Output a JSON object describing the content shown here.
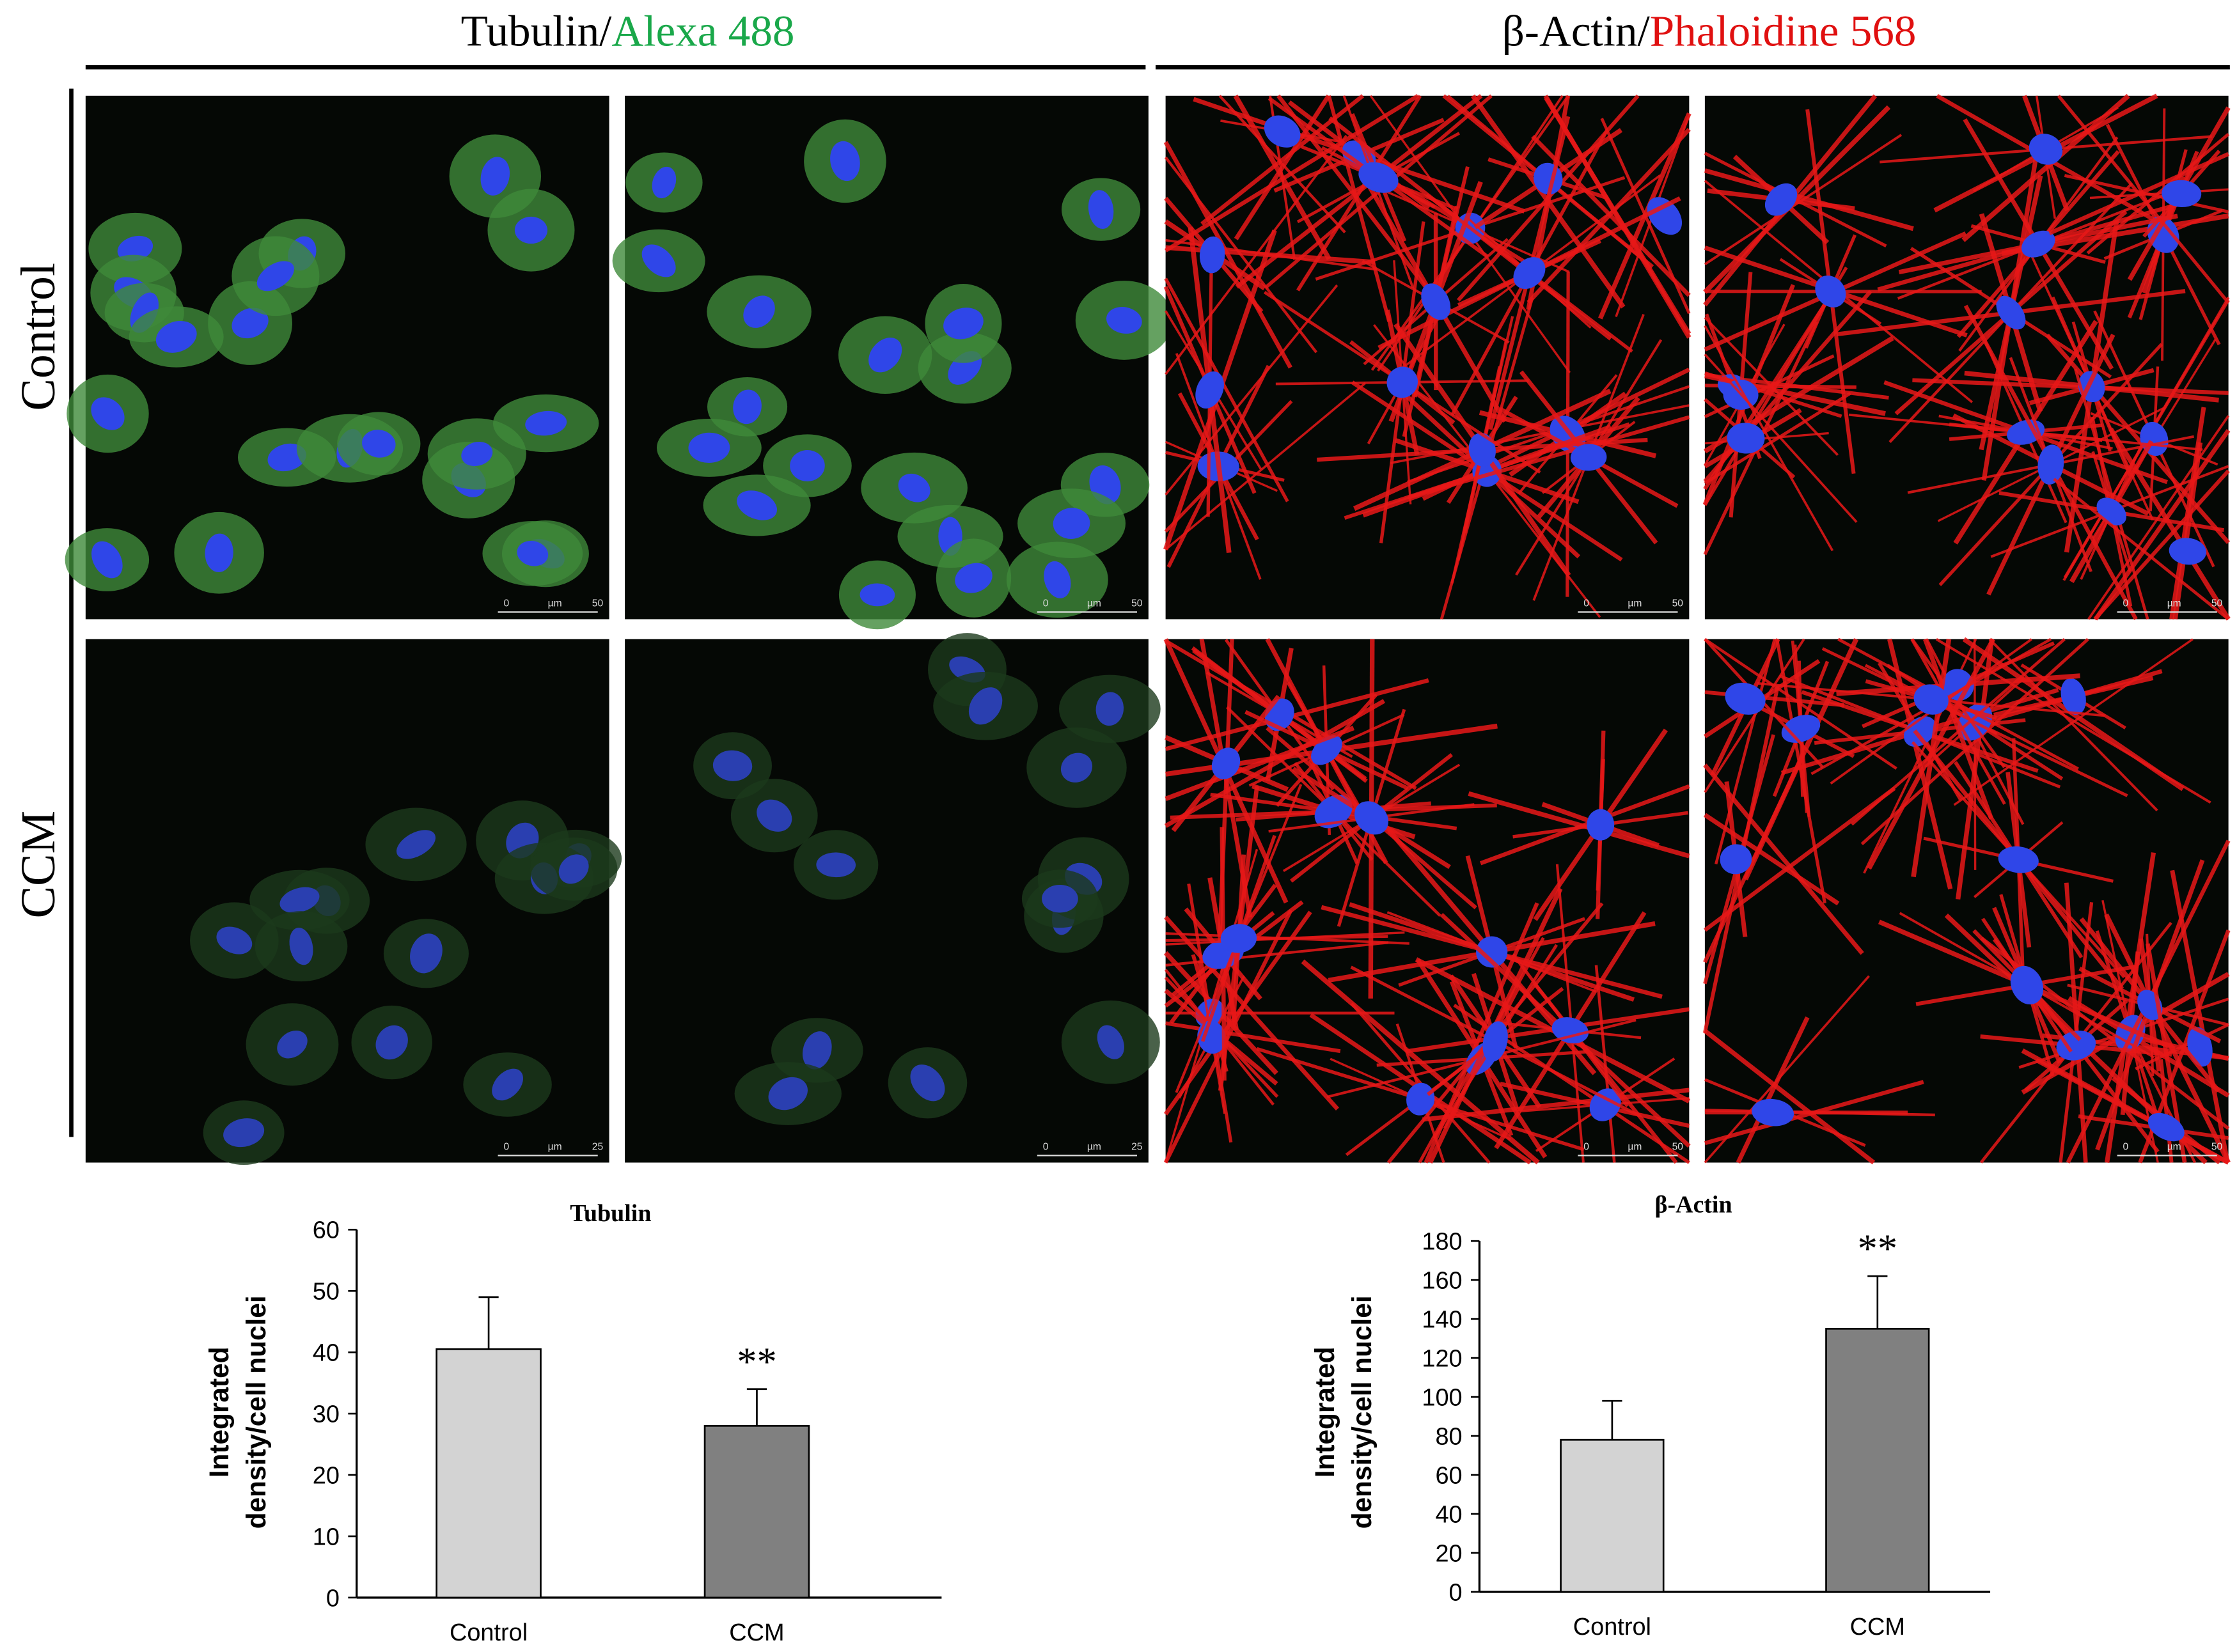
{
  "header": {
    "left": {
      "prefix": "Tubulin/",
      "stain": "Alexa 488"
    },
    "right": {
      "prefix": "β-Actin/",
      "stain": "Phaloidine 568"
    }
  },
  "rows": [
    "Control",
    "CCM"
  ],
  "panels": [
    [
      {
        "scale": [
          "0",
          "µm",
          "50"
        ]
      },
      {
        "scale": [
          "0",
          "µm",
          "50"
        ]
      },
      {
        "scale": [
          "0",
          "µm",
          "50"
        ]
      },
      {
        "scale": [
          "0",
          "µm",
          "50"
        ]
      }
    ],
    [
      {
        "scale": [
          "0",
          "µm",
          "25"
        ]
      },
      {
        "scale": [
          "0",
          "µm",
          "25"
        ]
      },
      {
        "scale": [
          "0",
          "µm",
          "50"
        ]
      },
      {
        "scale": [
          "0",
          "µm",
          "50"
        ]
      }
    ]
  ],
  "chart_data": [
    {
      "type": "bar",
      "title": "Tubulin",
      "ylabel": [
        "Integrated",
        "density/cell nuclei"
      ],
      "categories": [
        "Control",
        "CCM"
      ],
      "values": [
        40.5,
        28
      ],
      "errors": [
        8.5,
        6
      ],
      "colors": [
        "#d3d3d3",
        "#808080"
      ],
      "ylim": [
        0,
        60
      ],
      "yticks": [
        0,
        10,
        20,
        30,
        40,
        50,
        60
      ],
      "annotation": "**"
    },
    {
      "type": "bar",
      "title": "β-Actin",
      "ylabel": [
        "Integrated",
        "density/cell nuclei"
      ],
      "categories": [
        "Control",
        "CCM"
      ],
      "values": [
        78,
        135
      ],
      "errors": [
        20,
        27
      ],
      "colors": [
        "#d3d3d3",
        "#808080"
      ],
      "ylim": [
        0,
        180
      ],
      "yticks": [
        0,
        20,
        40,
        60,
        80,
        100,
        120,
        140,
        160,
        180
      ],
      "annotation": "**"
    }
  ]
}
